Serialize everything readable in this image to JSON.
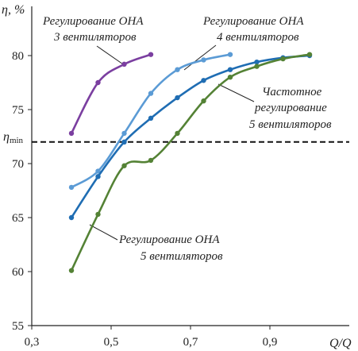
{
  "chart_data": {
    "type": "line",
    "ylabel": "η, %",
    "xlabel": "Q/Q",
    "xlim": [
      0.3,
      1.0
    ],
    "ylim": [
      55,
      83
    ],
    "x_ticks": [
      {
        "value": 0.3,
        "label": "0,3"
      },
      {
        "value": 0.5,
        "label": "0,5"
      },
      {
        "value": 0.7,
        "label": "0,7"
      },
      {
        "value": 0.9,
        "label": "0,9"
      }
    ],
    "y_ticks": [
      {
        "value": 55,
        "label": "55"
      },
      {
        "value": 60,
        "label": "60"
      },
      {
        "value": 65,
        "label": "65"
      },
      {
        "value": 70,
        "label": "70"
      },
      {
        "value": 75,
        "label": "75"
      },
      {
        "value": 80,
        "label": "80"
      }
    ],
    "grid": false,
    "reference_line": {
      "label": "η",
      "subscript": "min",
      "value": 72,
      "style": "dashed",
      "color": "#111111"
    },
    "series": [
      {
        "id": "s3",
        "color": "#7b3fa0",
        "x": [
          0.4,
          0.467,
          0.533,
          0.6
        ],
        "y": [
          72.8,
          77.5,
          79.2,
          80.1
        ]
      },
      {
        "id": "s4",
        "color": "#5b9bd5",
        "x": [
          0.4,
          0.467,
          0.533,
          0.6,
          0.667,
          0.733,
          0.8
        ],
        "y": [
          67.8,
          69.3,
          72.8,
          76.5,
          78.7,
          79.6,
          80.1
        ]
      },
      {
        "id": "sfreq",
        "color": "#1f6db3",
        "x": [
          0.4,
          0.467,
          0.533,
          0.6,
          0.667,
          0.733,
          0.8,
          0.867,
          0.933,
          1.0
        ],
        "y": [
          65.0,
          68.8,
          72.0,
          74.2,
          76.1,
          77.7,
          78.7,
          79.4,
          79.8,
          80.0
        ]
      },
      {
        "id": "s5",
        "color": "#548235",
        "x": [
          0.4,
          0.467,
          0.533,
          0.6,
          0.667,
          0.733,
          0.8,
          0.867,
          0.933,
          1.0
        ],
        "y": [
          60.1,
          65.3,
          69.8,
          70.3,
          72.8,
          75.8,
          78.0,
          79.0,
          79.7,
          80.1
        ]
      }
    ],
    "annotations": [
      {
        "lines": [
          "Регулирование ОНА",
          "3 вентиляторов"
        ],
        "series": "s3"
      },
      {
        "lines": [
          "Регулирование ОНА",
          "4 вентиляторов"
        ],
        "series": "s4"
      },
      {
        "lines": [
          "Частотное",
          "регулирование",
          "5 вентиляторов"
        ],
        "series": "sfreq"
      },
      {
        "lines": [
          "Регулирование ОНА",
          "5 вентиляторов"
        ],
        "series": "s5"
      }
    ]
  }
}
